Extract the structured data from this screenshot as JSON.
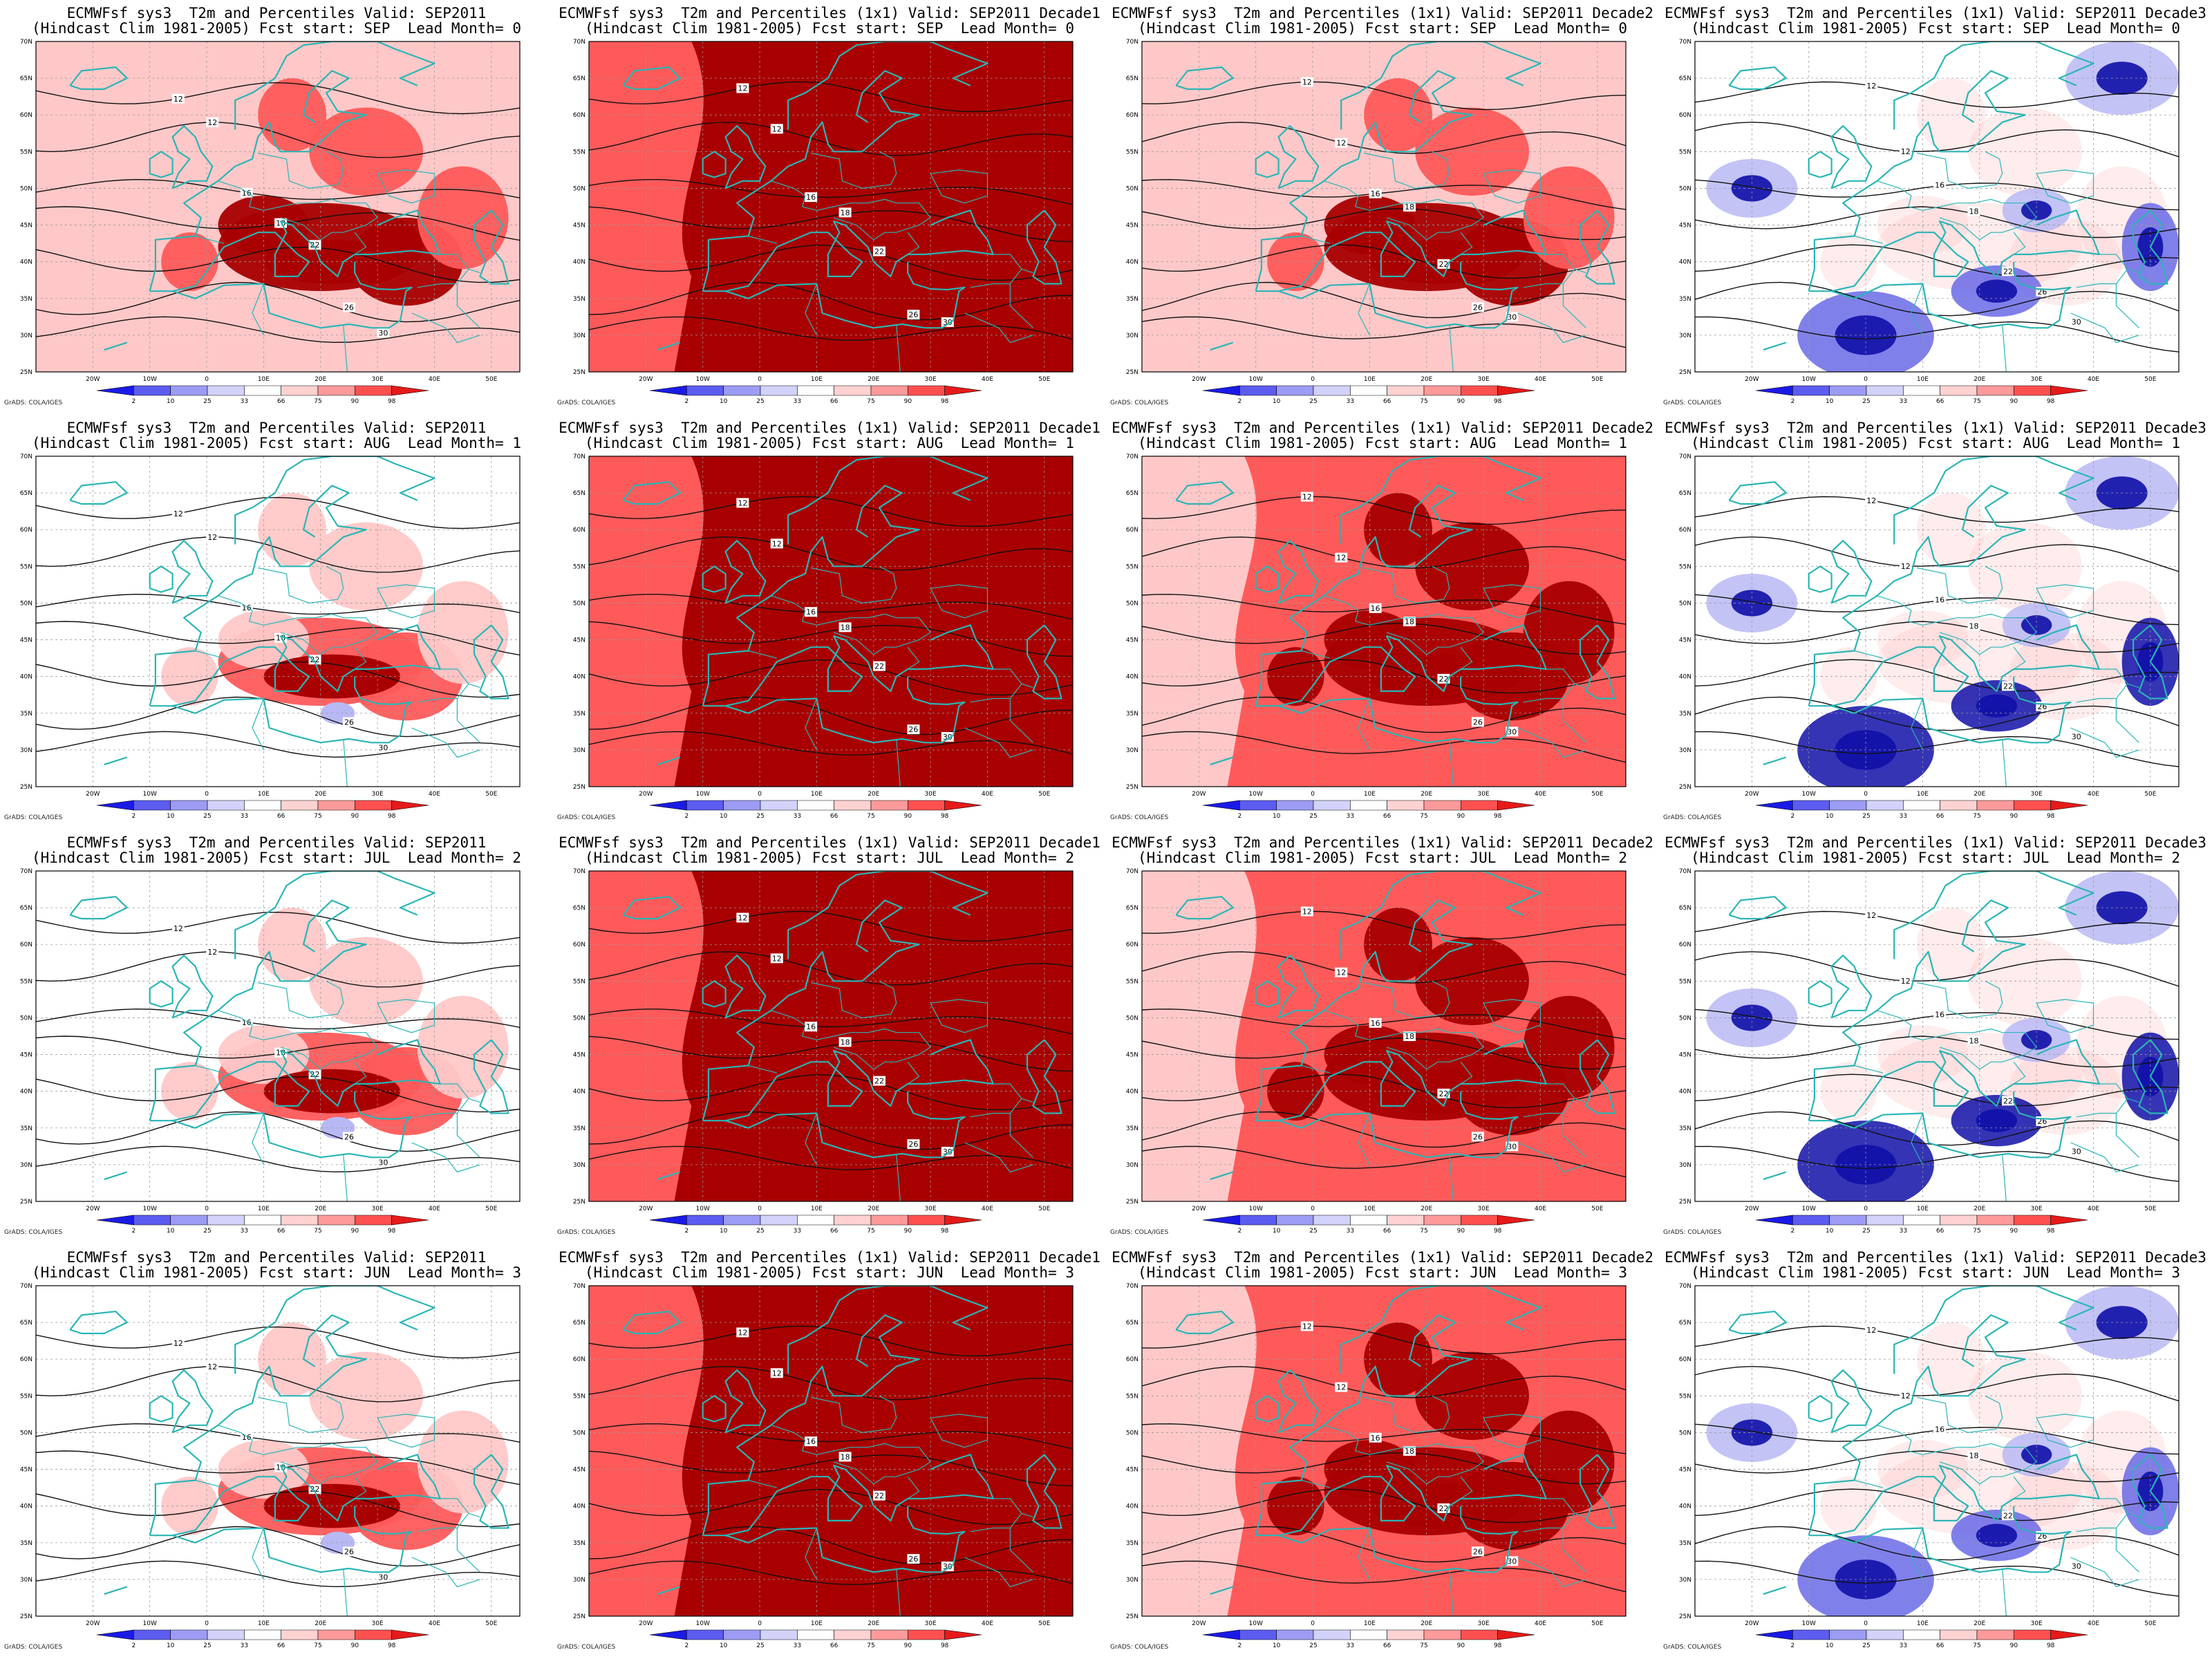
{
  "figure": {
    "title_prefix": "ECMWFsf sys3  T2m and Percentiles",
    "rows": [
      {
        "fcst_start": "SEP",
        "lead_month": "0",
        "panels": [
          {
            "title1": "ECMWFsf sys3  T2m and Percentiles Valid: SEP2011",
            "title2": "(Hindcast Clim 1981-2005) Fcst start: SEP  Lead Month= 0"
          },
          {
            "title1": "ECMWFsf sys3  T2m and Percentiles (1x1) Valid: SEP2011 Decade1",
            "title2": "(Hindcast Clim 1981-2005) Fcst start: SEP  Lead Month= 0"
          },
          {
            "title1": "ECMWFsf sys3  T2m and Percentiles (1x1) Valid: SEP2011 Decade2",
            "title2": "(Hindcast Clim 1981-2005) Fcst start: SEP  Lead Month= 0"
          },
          {
            "title1": "ECMWFsf sys3  T2m and Percentiles (1x1) Valid: SEP2011 Decade3",
            "title2": "(Hindcast Clim 1981-2005) Fcst start: SEP  Lead Month= 0"
          }
        ]
      },
      {
        "fcst_start": "AUG",
        "lead_month": "1",
        "panels": [
          {
            "title1": "ECMWFsf sys3  T2m and Percentiles Valid: SEP2011",
            "title2": "(Hindcast Clim 1981-2005) Fcst start: AUG  Lead Month= 1"
          },
          {
            "title1": "ECMWFsf sys3  T2m and Percentiles (1x1) Valid: SEP2011 Decade1",
            "title2": "(Hindcast Clim 1981-2005) Fcst start: AUG  Lead Month= 1"
          },
          {
            "title1": "ECMWFsf sys3  T2m and Percentiles (1x1) Valid: SEP2011 Decade2",
            "title2": "(Hindcast Clim 1981-2005) Fcst start: AUG  Lead Month= 1"
          },
          {
            "title1": "ECMWFsf sys3  T2m and Percentiles (1x1) Valid: SEP2011 Decade3",
            "title2": "(Hindcast Clim 1981-2005) Fcst start: AUG  Lead Month= 1"
          }
        ]
      },
      {
        "fcst_start": "JUL",
        "lead_month": "2",
        "panels": [
          {
            "title1": "ECMWFsf sys3  T2m and Percentiles Valid: SEP2011",
            "title2": "(Hindcast Clim 1981-2005) Fcst start: JUL  Lead Month= 2"
          },
          {
            "title1": "ECMWFsf sys3  T2m and Percentiles (1x1) Valid: SEP2011 Decade1",
            "title2": "(Hindcast Clim 1981-2005) Fcst start: JUL  Lead Month= 2"
          },
          {
            "title1": "ECMWFsf sys3  T2m and Percentiles (1x1) Valid: SEP2011 Decade2",
            "title2": "(Hindcast Clim 1981-2005) Fcst start: JUL  Lead Month= 2"
          },
          {
            "title1": "ECMWFsf sys3  T2m and Percentiles (1x1) Valid: SEP2011 Decade3",
            "title2": "(Hindcast Clim 1981-2005) Fcst start: JUL  Lead Month= 2"
          }
        ]
      },
      {
        "fcst_start": "JUN",
        "lead_month": "3",
        "panels": [
          {
            "title1": "ECMWFsf sys3  T2m and Percentiles Valid: SEP2011",
            "title2": "(Hindcast Clim 1981-2005) Fcst start: JUN  Lead Month= 3"
          },
          {
            "title1": "ECMWFsf sys3  T2m and Percentiles (1x1) Valid: SEP2011 Decade1",
            "title2": "(Hindcast Clim 1981-2005) Fcst start: JUN  Lead Month= 3"
          },
          {
            "title1": "ECMWFsf sys3  T2m and Percentiles (1x1) Valid: SEP2011 Decade2",
            "title2": "(Hindcast Clim 1981-2005) Fcst start: JUN  Lead Month= 3"
          },
          {
            "title1": "ECMWFsf sys3  T2m and Percentiles (1x1) Valid: SEP2011 Decade3",
            "title2": "(Hindcast Clim 1981-2005) Fcst start: JUN  Lead Month= 3"
          }
        ]
      }
    ],
    "lat_labels": [
      "70N",
      "65N",
      "60N",
      "55N",
      "50N",
      "45N",
      "40N",
      "35N",
      "30N",
      "25N"
    ],
    "lon_labels": [
      "20W",
      "10W",
      "0",
      "10E",
      "20E",
      "30E",
      "40E",
      "50E"
    ],
    "colorbar": {
      "labels": [
        "2",
        "10",
        "25",
        "33",
        "66",
        "75",
        "90",
        "98"
      ],
      "colors": [
        "#1a1ae6",
        "#5c5cf0",
        "#9c9cf5",
        "#d2d2fa",
        "#ffffff",
        "#ffd2d2",
        "#ff9a9a",
        "#ff5050",
        "#e61a1a"
      ]
    },
    "credit": "GrADS: COLA/IGES",
    "map_colors": {
      "ocean_land_base": "#ffffff",
      "coast": "#2ab5b5",
      "contour": "#111111",
      "p90": "#ff5a5a",
      "p98": "#a80000",
      "p75": "#ffc8c8",
      "p25": "#b8b8f5",
      "p10": "#6a6ae8",
      "p2": "#1010a8"
    },
    "row_intensity": [
      [
        2,
        4,
        2,
        -1
      ],
      [
        1,
        4,
        3,
        -2
      ],
      [
        1,
        4,
        3,
        -2
      ],
      [
        1,
        4,
        3,
        -1
      ]
    ]
  }
}
